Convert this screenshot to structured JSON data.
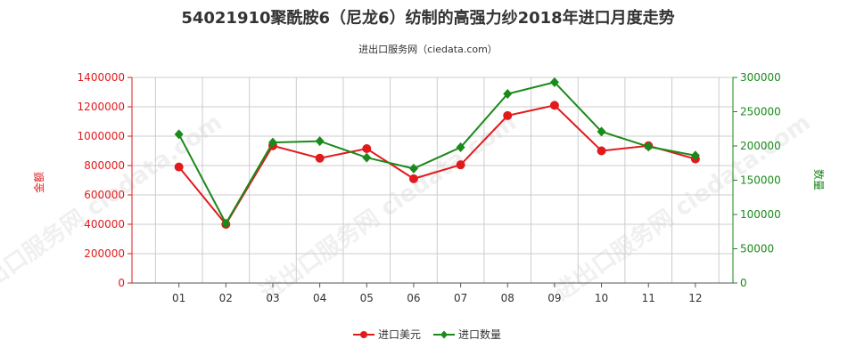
{
  "title": "54021910聚酰胺6（尼龙6）纺制的高强力纱2018年进口月度走势",
  "subtitle": "进出口服务网（ciedata.com）",
  "watermark": "进出口服务网 ciedata.com",
  "colors": {
    "left_axis": "#e31a1c",
    "right_axis": "#1a8a1a",
    "series_value": "#e31a1c",
    "series_quantity": "#1a8a1a",
    "grid": "#cccccc"
  },
  "chart_data": {
    "type": "line",
    "categories": [
      "01",
      "02",
      "03",
      "04",
      "05",
      "06",
      "07",
      "08",
      "09",
      "10",
      "11",
      "12"
    ],
    "y_left": {
      "label": "金额",
      "lim": [
        0,
        1400000
      ],
      "ticks": [
        "0",
        "200000",
        "400000",
        "600000",
        "800000",
        "1000000",
        "1200000",
        "1400000"
      ]
    },
    "y_right": {
      "label": "数量",
      "lim": [
        0,
        300000
      ],
      "ticks": [
        "0",
        "50000",
        "100000",
        "150000",
        "200000",
        "250000",
        "300000"
      ]
    },
    "series": [
      {
        "name": "进口美元",
        "axis": "left",
        "marker": "circle",
        "values": [
          790000,
          400000,
          935000,
          850000,
          915000,
          710000,
          805000,
          1140000,
          1210000,
          900000,
          935000,
          845000
        ]
      },
      {
        "name": "进口数量",
        "axis": "right",
        "marker": "diamond",
        "values": [
          217000,
          87000,
          205000,
          207000,
          183000,
          167000,
          198000,
          276000,
          293000,
          221000,
          199000,
          186000
        ]
      }
    ],
    "grid": true,
    "legend_position": "bottom-center"
  }
}
